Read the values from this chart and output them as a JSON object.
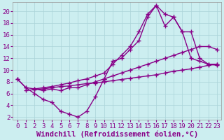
{
  "xlabel": "Windchill (Refroidissement éolien,°C)",
  "bg_color": "#cceef0",
  "grid_color": "#aad4d8",
  "line_color": "#880088",
  "marker": "+",
  "markersize": 4,
  "linewidth": 1.0,
  "xlim": [
    -0.5,
    23.5
  ],
  "ylim": [
    1.5,
    21.5
  ],
  "xticks": [
    0,
    1,
    2,
    3,
    4,
    5,
    6,
    7,
    8,
    9,
    10,
    11,
    12,
    13,
    14,
    15,
    16,
    17,
    18,
    19,
    20,
    21,
    22,
    23
  ],
  "yticks": [
    2,
    4,
    6,
    8,
    10,
    12,
    14,
    16,
    18,
    20
  ],
  "font_family": "monospace",
  "tick_fontsize": 6.5,
  "xlabel_fontsize": 7.5,
  "line1_x": [
    0,
    1,
    2,
    3,
    4,
    5,
    6,
    7,
    8,
    9,
    10,
    11,
    12,
    13,
    14,
    15,
    16,
    17,
    18,
    19,
    20,
    21,
    22,
    23
  ],
  "line1_y": [
    8.5,
    7.0,
    6.0,
    5.0,
    4.5,
    3.0,
    2.5,
    2.0,
    3.0,
    5.5,
    8.5,
    11.5,
    12.0,
    13.5,
    15.0,
    19.0,
    21.0,
    17.5,
    19.0,
    16.5,
    12.0,
    11.5,
    11.0,
    10.8
  ],
  "line2_x": [
    0,
    1,
    2,
    3,
    4,
    5,
    6,
    7,
    8,
    9,
    10,
    11,
    12,
    13,
    14,
    15,
    16,
    17,
    18,
    19,
    20,
    21,
    22,
    23
  ],
  "line2_y": [
    8.5,
    7.0,
    6.8,
    6.5,
    6.8,
    6.5,
    7.0,
    7.0,
    7.5,
    8.0,
    8.5,
    9.0,
    9.5,
    10.0,
    10.5,
    11.0,
    11.5,
    12.0,
    12.5,
    13.0,
    13.5,
    14.0,
    14.0,
    13.5
  ],
  "line3_x": [
    2,
    3,
    4,
    5,
    6,
    7,
    8,
    9,
    10,
    11,
    12,
    13,
    14,
    15,
    16,
    17,
    18,
    19,
    20,
    21,
    22,
    23
  ],
  "line3_y": [
    6.8,
    7.0,
    7.2,
    7.5,
    7.8,
    8.2,
    8.5,
    9.0,
    9.5,
    11.0,
    12.5,
    14.0,
    16.5,
    19.5,
    21.0,
    19.5,
    19.0,
    16.5,
    16.5,
    12.0,
    11.0,
    11.0
  ],
  "line4_x": [
    1,
    2,
    3,
    4,
    5,
    6,
    7,
    8,
    9,
    10,
    11,
    12,
    13,
    14,
    15,
    16,
    17,
    18,
    19,
    20,
    21,
    22,
    23
  ],
  "line4_y": [
    6.5,
    6.7,
    6.8,
    7.0,
    7.2,
    7.3,
    7.5,
    7.7,
    7.8,
    8.0,
    8.2,
    8.4,
    8.6,
    8.8,
    9.0,
    9.2,
    9.5,
    9.8,
    10.0,
    10.2,
    10.5,
    10.8,
    11.0
  ]
}
